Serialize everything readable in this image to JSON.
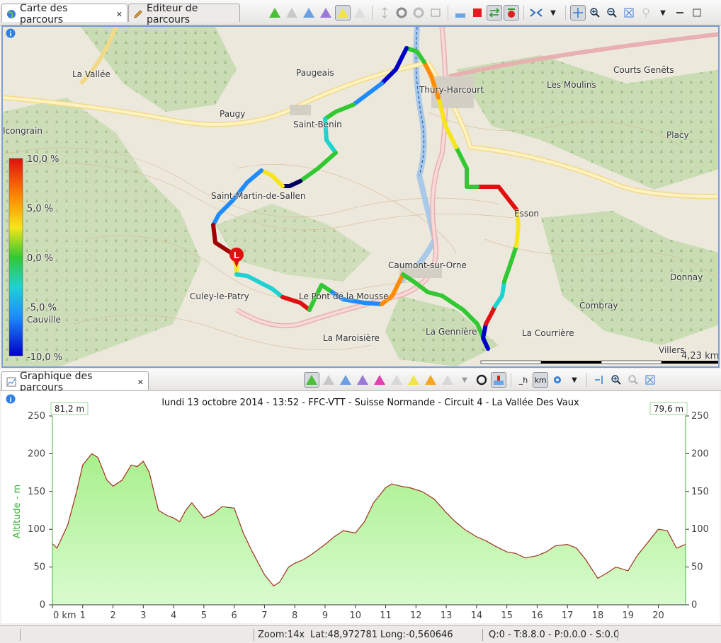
{
  "tabs_top": {
    "map_tab": "Carte des parcours",
    "editor_tab": "Editeur de parcours"
  },
  "map": {
    "scale_label": "4,23 km",
    "legend_labels": [
      "10,0 %",
      "5,0 %",
      "0,0 %",
      "-5,0 %",
      "-10,0 %"
    ],
    "place_names": [
      {
        "name": "La Vallée"
      },
      {
        "name": "Paugeais"
      },
      {
        "name": "Thury-Harcourt"
      },
      {
        "name": "Courts Genêts"
      },
      {
        "name": "Les Moulins"
      },
      {
        "name": "Paugy"
      },
      {
        "name": "Saint-Benin"
      },
      {
        "name": "Placy"
      },
      {
        "name": "Icongrain"
      },
      {
        "name": "Saint-Martin-de-Sallen"
      },
      {
        "name": "Esson"
      },
      {
        "name": "Caumont-sur-Orne"
      },
      {
        "name": "Donnay"
      },
      {
        "name": "Culey-le-Patry"
      },
      {
        "name": "Le Pont de la Mousse"
      },
      {
        "name": "Combray"
      },
      {
        "name": "Cauville"
      },
      {
        "name": "La Gennière"
      },
      {
        "name": "La Courrière"
      },
      {
        "name": "La Maroisière"
      },
      {
        "name": "Villers"
      }
    ],
    "marker_letter": "L"
  },
  "chart_tab": "Graphique des parcours",
  "chart_data": {
    "type": "area",
    "title": "lundi 13 octobre 2014 - 13:52 - FFC-VTT - Suisse Normande - Circuit 4 - La Vallée Des Vaux",
    "ylabel": "Altitude - m",
    "xlabel": "",
    "start_label": "81,2 m",
    "end_label": "79,6 m",
    "ylim": [
      0,
      250
    ],
    "xlim": [
      0,
      20.9
    ],
    "y_ticks": [
      0,
      50,
      100,
      150,
      200,
      250
    ],
    "x_tick_labels": [
      "0 km",
      "1",
      "2",
      "3",
      "4",
      "5",
      "6",
      "7",
      "8",
      "9",
      "10",
      "11",
      "12",
      "13",
      "14",
      "15",
      "16",
      "17",
      "18",
      "19",
      "20"
    ],
    "x": [
      0,
      0.15,
      0.5,
      0.8,
      1.0,
      1.3,
      1.5,
      1.8,
      2.0,
      2.3,
      2.6,
      2.8,
      3.0,
      3.2,
      3.5,
      3.8,
      4.0,
      4.2,
      4.4,
      4.6,
      5.0,
      5.3,
      5.6,
      6.0,
      6.3,
      6.6,
      7.0,
      7.3,
      7.5,
      7.8,
      8.0,
      8.3,
      8.6,
      9.0,
      9.3,
      9.6,
      10.0,
      10.3,
      10.6,
      11.0,
      11.2,
      11.5,
      11.8,
      12.2,
      12.6,
      13.0,
      13.3,
      13.6,
      14.0,
      14.3,
      14.6,
      15.0,
      15.3,
      15.6,
      16.0,
      16.3,
      16.6,
      17.0,
      17.3,
      17.6,
      18.0,
      18.3,
      18.6,
      19.0,
      19.3,
      19.6,
      20.0,
      20.3,
      20.6,
      20.9
    ],
    "values": [
      81,
      75,
      105,
      150,
      185,
      200,
      195,
      165,
      157,
      165,
      185,
      183,
      190,
      175,
      125,
      118,
      115,
      110,
      125,
      135,
      115,
      120,
      130,
      128,
      95,
      70,
      40,
      25,
      30,
      50,
      55,
      60,
      68,
      80,
      90,
      98,
      95,
      110,
      135,
      155,
      160,
      157,
      155,
      150,
      140,
      122,
      110,
      100,
      90,
      85,
      78,
      70,
      68,
      62,
      65,
      70,
      78,
      80,
      75,
      60,
      35,
      42,
      50,
      45,
      65,
      80,
      100,
      98,
      75,
      80
    ]
  },
  "status": {
    "zoom": "Zoom:14x",
    "lat": "Lat:48,972781",
    "long": "Long:-0,560646",
    "info": "Q:0 - T:8.8.0 - P:0.0.0 - S:0.0"
  },
  "colors": {
    "area_fill_top": "#a8f08c",
    "area_fill_bottom": "#d9fbcf",
    "line": "#a0301e",
    "axis_left": "#3cb43c"
  }
}
